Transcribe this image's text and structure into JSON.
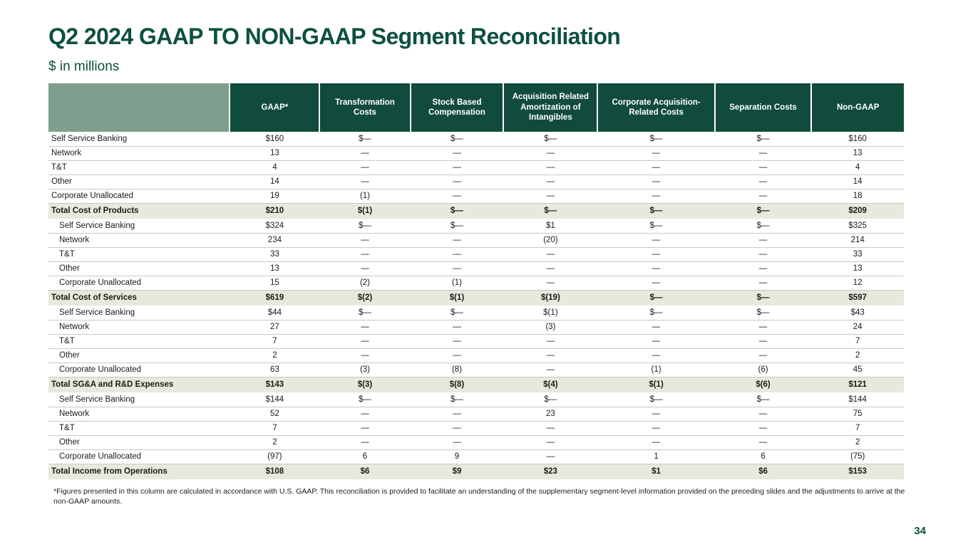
{
  "slide": {
    "title": "Q2 2024 GAAP TO NON-GAAP Segment Reconciliation",
    "subtitle": "$ in millions",
    "footnote": "*Figures presented in this column are calculated in accordance with U.S. GAAP. This reconciliation is provided to facilitate an understanding of the supplementary segment-level information provided  on the preceding slides and the adjustments to arrive at the non-GAAP amounts.",
    "page_number": "34"
  },
  "colors": {
    "header_green": "#114b3c",
    "title_green": "#0d5040",
    "corner_sage": "#7f9e8d",
    "total_row_bg": "#e6e9dc",
    "row_line": "#c6ccc1"
  },
  "table": {
    "columns": [
      "",
      "GAAP*",
      "Transformation Costs",
      "Stock Based Compensation",
      "Acquisition Related Amortization of Intangibles",
      "Corporate Acquisition-Related Costs",
      "Separation Costs",
      "Non-GAAP"
    ],
    "rows": [
      {
        "label": "Self Service Banking",
        "type": "data",
        "indent": false,
        "values": [
          "$160",
          "$—",
          "$—",
          "$—",
          "$—",
          "$—",
          "$160"
        ]
      },
      {
        "label": "Network",
        "type": "data",
        "indent": false,
        "values": [
          "13",
          "—",
          "—",
          "—",
          "—",
          "—",
          "13"
        ]
      },
      {
        "label": "T&T",
        "type": "data",
        "indent": false,
        "values": [
          "4",
          "—",
          "—",
          "—",
          "—",
          "—",
          "4"
        ]
      },
      {
        "label": "Other",
        "type": "data",
        "indent": false,
        "values": [
          "14",
          "—",
          "—",
          "—",
          "—",
          "—",
          "14"
        ]
      },
      {
        "label": "Corporate Unallocated",
        "type": "data",
        "indent": false,
        "values": [
          "19",
          "(1)",
          "—",
          "—",
          "—",
          "—",
          "18"
        ]
      },
      {
        "label": "Total Cost of Products",
        "type": "total",
        "indent": false,
        "values": [
          "$210",
          "$(1)",
          "$—",
          "$—",
          "$—",
          "$—",
          "$209"
        ]
      },
      {
        "label": "Self Service Banking",
        "type": "data",
        "indent": true,
        "values": [
          "$324",
          "$—",
          "$—",
          "$1",
          "$—",
          "$—",
          "$325"
        ]
      },
      {
        "label": "Network",
        "type": "data",
        "indent": true,
        "values": [
          "234",
          "—",
          "—",
          "(20)",
          "—",
          "—",
          "214"
        ]
      },
      {
        "label": "T&T",
        "type": "data",
        "indent": true,
        "values": [
          "33",
          "—",
          "—",
          "—",
          "—",
          "—",
          "33"
        ]
      },
      {
        "label": "Other",
        "type": "data",
        "indent": true,
        "values": [
          "13",
          "—",
          "—",
          "—",
          "—",
          "—",
          "13"
        ]
      },
      {
        "label": "Corporate Unallocated",
        "type": "data",
        "indent": true,
        "values": [
          "15",
          "(2)",
          "(1)",
          "—",
          "—",
          "—",
          "12"
        ]
      },
      {
        "label": "Total Cost of Services",
        "type": "total",
        "indent": false,
        "values": [
          "$619",
          "$(2)",
          "$(1)",
          "$(19)",
          "$—",
          "$—",
          "$597"
        ]
      },
      {
        "label": "Self Service Banking",
        "type": "data",
        "indent": true,
        "values": [
          "$44",
          "$—",
          "$—",
          "$(1)",
          "$—",
          "$—",
          "$43"
        ]
      },
      {
        "label": "Network",
        "type": "data",
        "indent": true,
        "values": [
          "27",
          "—",
          "—",
          "(3)",
          "—",
          "—",
          "24"
        ]
      },
      {
        "label": "T&T",
        "type": "data",
        "indent": true,
        "values": [
          "7",
          "—",
          "—",
          "—",
          "—",
          "—",
          "7"
        ]
      },
      {
        "label": "Other",
        "type": "data",
        "indent": true,
        "values": [
          "2",
          "—",
          "—",
          "—",
          "—",
          "—",
          "2"
        ]
      },
      {
        "label": "Corporate Unallocated",
        "type": "data",
        "indent": true,
        "values": [
          "63",
          "(3)",
          "(8)",
          "—",
          "(1)",
          "(6)",
          "45"
        ]
      },
      {
        "label": "Total SG&A and R&D Expenses",
        "type": "total",
        "indent": false,
        "values": [
          "$143",
          "$(3)",
          "$(8)",
          "$(4)",
          "$(1)",
          "$(6)",
          "$121"
        ]
      },
      {
        "label": "Self Service Banking",
        "type": "data",
        "indent": true,
        "values": [
          "$144",
          "$—",
          "$—",
          "$—",
          "$—",
          "$—",
          "$144"
        ]
      },
      {
        "label": "Network",
        "type": "data",
        "indent": true,
        "values": [
          "52",
          "—",
          "—",
          "23",
          "—",
          "—",
          "75"
        ]
      },
      {
        "label": "T&T",
        "type": "data",
        "indent": true,
        "values": [
          "7",
          "—",
          "—",
          "—",
          "—",
          "—",
          "7"
        ]
      },
      {
        "label": "Other",
        "type": "data",
        "indent": true,
        "values": [
          "2",
          "—",
          "—",
          "—",
          "—",
          "—",
          "2"
        ]
      },
      {
        "label": "Corporate Unallocated",
        "type": "data",
        "indent": true,
        "values": [
          "(97)",
          "6",
          "9",
          "—",
          "1",
          "6",
          "(75)"
        ]
      },
      {
        "label": "Total Income from Operations",
        "type": "total",
        "indent": false,
        "values": [
          "$108",
          "$6",
          "$9",
          "$23",
          "$1",
          "$6",
          "$153"
        ]
      }
    ]
  }
}
